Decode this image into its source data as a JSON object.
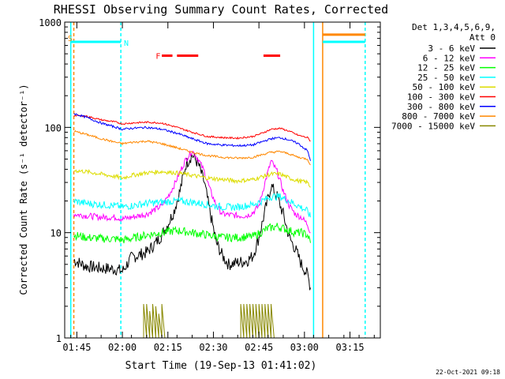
{
  "chart_data": {
    "type": "line",
    "title": "RHESSI Observing Summary Count Rates, Corrected",
    "xlabel": "Start Time (19-Sep-13 01:41:02)",
    "ylabel": "Corrected Count Rate (s⁻¹ detector⁻¹)",
    "yscale": "log",
    "ylim": [
      1,
      1000
    ],
    "xlim_minutes": [
      -2,
      102
    ],
    "x_unit": "minutes after 01:43",
    "x_ticks": [
      {
        "t": 2,
        "label": "01:45"
      },
      {
        "t": 17,
        "label": "02:00"
      },
      {
        "t": 32,
        "label": "02:15"
      },
      {
        "t": 47,
        "label": "02:30"
      },
      {
        "t": 62,
        "label": "02:45"
      },
      {
        "t": 77,
        "label": "03:00"
      },
      {
        "t": 92,
        "label": "03:15"
      }
    ],
    "y_ticks": [
      {
        "v": 1,
        "label": "1"
      },
      {
        "v": 10,
        "label": "10"
      },
      {
        "v": 100,
        "label": "100"
      },
      {
        "v": 1000,
        "label": "1000"
      }
    ],
    "legend": {
      "placement": "top-right",
      "header": [
        "Det 1,3,4,5,6,9,",
        "Att 0"
      ]
    },
    "series": [
      {
        "name": "3 - 6 keV",
        "color": "#000000",
        "points": [
          [
            1,
            5.5
          ],
          [
            5,
            4.8
          ],
          [
            10,
            4.6
          ],
          [
            15,
            4.5
          ],
          [
            17,
            4.3
          ],
          [
            20,
            5.8
          ],
          [
            25,
            6.5
          ],
          [
            28,
            8.0
          ],
          [
            30,
            9.5
          ],
          [
            32,
            12
          ],
          [
            34,
            16
          ],
          [
            36,
            25
          ],
          [
            38,
            45
          ],
          [
            40,
            55
          ],
          [
            42,
            45
          ],
          [
            44,
            30
          ],
          [
            46,
            15
          ],
          [
            48,
            8
          ],
          [
            50,
            6
          ],
          [
            52,
            5
          ],
          [
            55,
            5.2
          ],
          [
            58,
            5.4
          ],
          [
            60,
            6
          ],
          [
            62,
            9
          ],
          [
            64,
            16
          ],
          [
            66,
            28
          ],
          [
            68,
            22
          ],
          [
            70,
            15
          ],
          [
            72,
            9
          ],
          [
            74,
            7
          ],
          [
            76,
            5
          ],
          [
            78,
            4
          ],
          [
            79,
            3
          ]
        ]
      },
      {
        "name": "6 - 12 keV",
        "color": "#ff00ff",
        "points": [
          [
            1,
            15
          ],
          [
            5,
            14.5
          ],
          [
            10,
            14
          ],
          [
            15,
            14
          ],
          [
            17,
            13.5
          ],
          [
            20,
            14
          ],
          [
            25,
            15
          ],
          [
            30,
            18
          ],
          [
            32,
            22
          ],
          [
            34,
            28
          ],
          [
            36,
            38
          ],
          [
            38,
            50
          ],
          [
            40,
            60
          ],
          [
            42,
            50
          ],
          [
            44,
            38
          ],
          [
            46,
            25
          ],
          [
            48,
            18
          ],
          [
            50,
            15
          ],
          [
            55,
            14.5
          ],
          [
            58,
            14.5
          ],
          [
            60,
            15.5
          ],
          [
            62,
            18
          ],
          [
            64,
            30
          ],
          [
            66,
            48
          ],
          [
            68,
            38
          ],
          [
            70,
            25
          ],
          [
            72,
            18
          ],
          [
            74,
            15
          ],
          [
            76,
            14
          ],
          [
            78,
            12
          ],
          [
            79,
            10
          ]
        ]
      },
      {
        "name": "12 - 25 keV",
        "color": "#00ff00",
        "points": [
          [
            1,
            9.5
          ],
          [
            5,
            9
          ],
          [
            10,
            8.8
          ],
          [
            15,
            8.7
          ],
          [
            17,
            8.5
          ],
          [
            20,
            8.8
          ],
          [
            25,
            9.5
          ],
          [
            30,
            10
          ],
          [
            35,
            10.5
          ],
          [
            40,
            10
          ],
          [
            45,
            9.5
          ],
          [
            50,
            9
          ],
          [
            55,
            9
          ],
          [
            60,
            9.2
          ],
          [
            62,
            9.8
          ],
          [
            65,
            11
          ],
          [
            68,
            11.5
          ],
          [
            70,
            11
          ],
          [
            72,
            10.5
          ],
          [
            74,
            10
          ],
          [
            76,
            10
          ],
          [
            78,
            9.5
          ],
          [
            79,
            8
          ]
        ]
      },
      {
        "name": "25 - 50 keV",
        "color": "#00ffff",
        "points": [
          [
            1,
            20
          ],
          [
            5,
            19
          ],
          [
            10,
            18.5
          ],
          [
            15,
            18
          ],
          [
            17,
            17.5
          ],
          [
            20,
            18
          ],
          [
            25,
            19
          ],
          [
            30,
            19.5
          ],
          [
            35,
            20
          ],
          [
            40,
            19.5
          ],
          [
            45,
            18.5
          ],
          [
            50,
            17.5
          ],
          [
            55,
            17.5
          ],
          [
            60,
            18.5
          ],
          [
            63,
            20
          ],
          [
            66,
            22
          ],
          [
            69,
            22
          ],
          [
            72,
            20
          ],
          [
            75,
            18
          ],
          [
            78,
            16
          ],
          [
            79,
            14
          ]
        ]
      },
      {
        "name": "50 - 100 keV",
        "color": "#dddd00",
        "points": [
          [
            1,
            39
          ],
          [
            5,
            38
          ],
          [
            10,
            36
          ],
          [
            15,
            34
          ],
          [
            17,
            33
          ],
          [
            20,
            35
          ],
          [
            25,
            37
          ],
          [
            30,
            38
          ],
          [
            35,
            37
          ],
          [
            40,
            35
          ],
          [
            45,
            33
          ],
          [
            50,
            32
          ],
          [
            55,
            31
          ],
          [
            60,
            32
          ],
          [
            63,
            34
          ],
          [
            66,
            36
          ],
          [
            69,
            36
          ],
          [
            72,
            33
          ],
          [
            75,
            31
          ],
          [
            78,
            30
          ],
          [
            79,
            27
          ]
        ]
      },
      {
        "name": "100 - 300 keV",
        "color": "#ff0000",
        "points": [
          [
            1,
            130
          ],
          [
            5,
            128
          ],
          [
            10,
            118
          ],
          [
            15,
            112
          ],
          [
            17,
            108
          ],
          [
            20,
            110
          ],
          [
            25,
            112
          ],
          [
            30,
            110
          ],
          [
            35,
            100
          ],
          [
            40,
            90
          ],
          [
            45,
            82
          ],
          [
            50,
            80
          ],
          [
            55,
            79
          ],
          [
            60,
            82
          ],
          [
            63,
            88
          ],
          [
            66,
            96
          ],
          [
            69,
            98
          ],
          [
            72,
            92
          ],
          [
            75,
            84
          ],
          [
            78,
            80
          ],
          [
            79,
            74
          ]
        ]
      },
      {
        "name": "300 - 800 keV",
        "color": "#0000ff",
        "points": [
          [
            1,
            135
          ],
          [
            5,
            125
          ],
          [
            10,
            110
          ],
          [
            15,
            100
          ],
          [
            17,
            96
          ],
          [
            20,
            98
          ],
          [
            25,
            100
          ],
          [
            30,
            96
          ],
          [
            35,
            88
          ],
          [
            40,
            78
          ],
          [
            45,
            70
          ],
          [
            50,
            68
          ],
          [
            55,
            67
          ],
          [
            60,
            68
          ],
          [
            63,
            73
          ],
          [
            66,
            78
          ],
          [
            69,
            80
          ],
          [
            72,
            76
          ],
          [
            75,
            70
          ],
          [
            78,
            60
          ],
          [
            79,
            48
          ]
        ]
      },
      {
        "name": "800 - 7000 keV",
        "color": "#ff8800",
        "points": [
          [
            1,
            92
          ],
          [
            5,
            86
          ],
          [
            10,
            78
          ],
          [
            15,
            72
          ],
          [
            17,
            70
          ],
          [
            20,
            72
          ],
          [
            25,
            74
          ],
          [
            30,
            70
          ],
          [
            35,
            64
          ],
          [
            40,
            58
          ],
          [
            45,
            54
          ],
          [
            50,
            52
          ],
          [
            55,
            51
          ],
          [
            60,
            52
          ],
          [
            63,
            55
          ],
          [
            66,
            58
          ],
          [
            69,
            59
          ],
          [
            72,
            56
          ],
          [
            75,
            52
          ],
          [
            78,
            50
          ],
          [
            79,
            44
          ]
        ]
      },
      {
        "name": "7000 - 15000 keV",
        "color": "#888800",
        "points": [
          [
            24,
            1.0
          ],
          [
            24,
            2.1
          ],
          [
            25,
            1.0
          ],
          [
            25,
            2.1
          ],
          [
            26,
            1.0
          ],
          [
            26,
            1.8
          ],
          [
            27,
            1.0
          ],
          [
            27,
            2.1
          ],
          [
            28,
            1.0
          ],
          [
            28,
            2.0
          ],
          [
            29,
            1.0
          ],
          [
            29,
            1.7
          ],
          [
            30,
            1.0
          ],
          [
            30,
            2.1
          ],
          [
            31,
            1.0
          ],
          [
            56,
            1.0
          ],
          [
            56,
            2.1
          ],
          [
            57,
            1.0
          ],
          [
            57,
            2.1
          ],
          [
            58,
            1.0
          ],
          [
            58,
            2.1
          ],
          [
            59,
            1.0
          ],
          [
            59,
            2.1
          ],
          [
            60,
            1.0
          ],
          [
            60,
            2.1
          ],
          [
            61,
            1.0
          ],
          [
            61,
            2.1
          ],
          [
            62,
            1.0
          ],
          [
            62,
            2.1
          ],
          [
            63,
            1.0
          ],
          [
            63,
            2.1
          ],
          [
            64,
            1.0
          ],
          [
            64,
            2.1
          ],
          [
            65,
            1.0
          ],
          [
            65,
            2.1
          ],
          [
            66,
            1.0
          ],
          [
            66,
            2.1
          ],
          [
            67,
            1.0
          ]
        ]
      }
    ],
    "flags": [
      {
        "letter": "S",
        "color": "#ff8800",
        "t": -1,
        "v": 710
      },
      {
        "letter": "N",
        "color": "#00ffff",
        "t": 17.5,
        "v": 640
      },
      {
        "letter": "F",
        "color": "#ff0000",
        "t": 28,
        "v": 480
      }
    ],
    "flag_bars": [
      {
        "name": "saa",
        "color": "#00ffff",
        "segments": [
          [
            0,
            16.5
          ],
          [
            83,
            97
          ]
        ],
        "v": 650
      },
      {
        "name": "attenuator",
        "color": "#ff8800",
        "segments": [
          [
            83,
            97
          ]
        ],
        "v": 760
      },
      {
        "name": "flare",
        "color": "#ff0000",
        "segments": [
          [
            30,
            33.5
          ],
          [
            35,
            42
          ],
          [
            63.5,
            69
          ]
        ],
        "v": 480
      }
    ],
    "vlines": [
      {
        "t": 0,
        "color": "#00ffff",
        "style": "solid"
      },
      {
        "t": 1,
        "color": "#ff8800",
        "style": "dashed"
      },
      {
        "t": 16.5,
        "color": "#00ffff",
        "style": "dashed"
      },
      {
        "t": 80,
        "color": "#00ffff",
        "style": "solid"
      },
      {
        "t": 83,
        "color": "#ff8800",
        "style": "solid"
      },
      {
        "t": 97,
        "color": "#ff8800",
        "style": "dashed"
      },
      {
        "t": 97,
        "color": "#00ffff",
        "style": "dashed"
      }
    ]
  },
  "footer": {
    "timestamp": "22-Oct-2021 09:18"
  }
}
